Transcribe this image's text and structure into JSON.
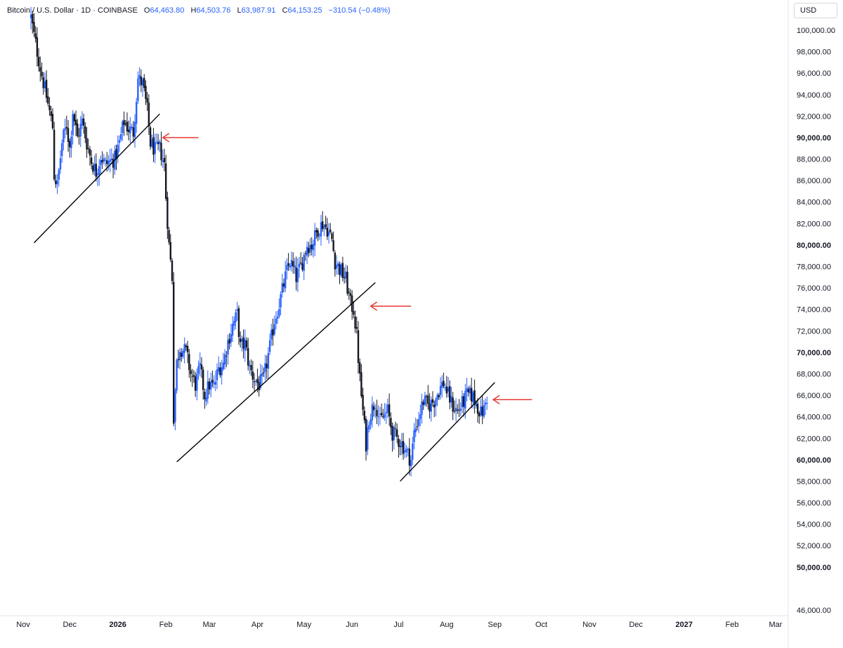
{
  "header": {
    "symbol": "Bitcoin / U.S. Dollar",
    "interval": "1D",
    "exchange": "COINBASE",
    "open_label": "O",
    "open": "64,463.80",
    "high_label": "H",
    "high": "64,503.76",
    "low_label": "L",
    "low": "63,987.91",
    "close_label": "C",
    "close": "64,153.25",
    "change": "−310.54 (−0.48%)",
    "currency": "USD"
  },
  "colors": {
    "up": "#2962ff",
    "down": "#131722",
    "annotation": "#e53935",
    "trendline": "#000000"
  },
  "chart_data": {
    "type": "candlestick",
    "ylim": [
      45000,
      101500
    ],
    "x_range": [
      "2025-11-01",
      "2027-03-31"
    ],
    "y_ticks": [
      {
        "label": "100,000.00",
        "value": 100000,
        "bold": false
      },
      {
        "label": "98,000.00",
        "value": 98000,
        "bold": false
      },
      {
        "label": "96,000.00",
        "value": 96000,
        "bold": false
      },
      {
        "label": "94,000.00",
        "value": 94000,
        "bold": false
      },
      {
        "label": "92,000.00",
        "value": 92000,
        "bold": false
      },
      {
        "label": "90,000.00",
        "value": 90000,
        "bold": true
      },
      {
        "label": "88,000.00",
        "value": 88000,
        "bold": false
      },
      {
        "label": "86,000.00",
        "value": 86000,
        "bold": false
      },
      {
        "label": "84,000.00",
        "value": 84000,
        "bold": false
      },
      {
        "label": "82,000.00",
        "value": 82000,
        "bold": false
      },
      {
        "label": "80,000.00",
        "value": 80000,
        "bold": true
      },
      {
        "label": "78,000.00",
        "value": 78000,
        "bold": false
      },
      {
        "label": "76,000.00",
        "value": 76000,
        "bold": false
      },
      {
        "label": "74,000.00",
        "value": 74000,
        "bold": false
      },
      {
        "label": "72,000.00",
        "value": 72000,
        "bold": false
      },
      {
        "label": "70,000.00",
        "value": 70000,
        "bold": true
      },
      {
        "label": "68,000.00",
        "value": 68000,
        "bold": false
      },
      {
        "label": "66,000.00",
        "value": 66000,
        "bold": false
      },
      {
        "label": "64,000.00",
        "value": 64000,
        "bold": false
      },
      {
        "label": "62,000.00",
        "value": 62000,
        "bold": false
      },
      {
        "label": "60,000.00",
        "value": 60000,
        "bold": true
      },
      {
        "label": "58,000.00",
        "value": 58000,
        "bold": false
      },
      {
        "label": "56,000.00",
        "value": 56000,
        "bold": false
      },
      {
        "label": "54,000.00",
        "value": 54000,
        "bold": false
      },
      {
        "label": "52,000.00",
        "value": 52000,
        "bold": false
      },
      {
        "label": "50,000.00",
        "value": 50000,
        "bold": true
      },
      {
        "label": "46,000.00",
        "value": 46000,
        "bold": false
      }
    ],
    "x_ticks": [
      {
        "label": "Nov",
        "date": "2025-11-01",
        "bold": false
      },
      {
        "label": "Dec",
        "date": "2025-12-01",
        "bold": false
      },
      {
        "label": "2026",
        "date": "2026-01-01",
        "bold": true
      },
      {
        "label": "Feb",
        "date": "2026-02-01",
        "bold": false
      },
      {
        "label": "Mar",
        "date": "2026-03-01",
        "bold": false
      },
      {
        "label": "Apr",
        "date": "2026-04-01",
        "bold": false
      },
      {
        "label": "May",
        "date": "2026-05-01",
        "bold": false
      },
      {
        "label": "Jun",
        "date": "2026-06-01",
        "bold": false
      },
      {
        "label": "Jul",
        "date": "2026-07-01",
        "bold": false
      },
      {
        "label": "Aug",
        "date": "2026-08-01",
        "bold": false
      },
      {
        "label": "Sep",
        "date": "2026-09-01",
        "bold": false
      },
      {
        "label": "Oct",
        "date": "2026-10-01",
        "bold": false
      },
      {
        "label": "Nov",
        "date": "2026-11-01",
        "bold": false
      },
      {
        "label": "Dec",
        "date": "2026-12-01",
        "bold": false
      },
      {
        "label": "2027",
        "date": "2027-01-01",
        "bold": true
      },
      {
        "label": "Feb",
        "date": "2027-02-01",
        "bold": false
      },
      {
        "label": "Mar",
        "date": "2027-03-01",
        "bold": false
      }
    ],
    "close_path": [
      [
        "2025-11-06",
        101200
      ],
      [
        "2025-11-08",
        99500
      ],
      [
        "2025-11-12",
        96500
      ],
      [
        "2025-11-16",
        93800
      ],
      [
        "2025-11-20",
        91000
      ],
      [
        "2025-11-21",
        86500
      ],
      [
        "2025-11-23",
        85500
      ],
      [
        "2025-11-26",
        89500
      ],
      [
        "2025-11-29",
        91200
      ],
      [
        "2025-12-01",
        89000
      ],
      [
        "2025-12-03",
        92500
      ],
      [
        "2025-12-06",
        90000
      ],
      [
        "2025-12-09",
        91500
      ],
      [
        "2025-12-12",
        89500
      ],
      [
        "2025-12-15",
        87800
      ],
      [
        "2025-12-18",
        86800
      ],
      [
        "2025-12-21",
        88300
      ],
      [
        "2025-12-24",
        87500
      ],
      [
        "2025-12-27",
        87800
      ],
      [
        "2025-12-30",
        88000
      ],
      [
        "2026-01-02",
        89500
      ],
      [
        "2026-01-05",
        91500
      ],
      [
        "2026-01-08",
        90800
      ],
      [
        "2026-01-11",
        90500
      ],
      [
        "2026-01-14",
        95500
      ],
      [
        "2026-01-17",
        95000
      ],
      [
        "2026-01-20",
        92500
      ],
      [
        "2026-01-22",
        89500
      ],
      [
        "2026-01-25",
        88800
      ],
      [
        "2026-01-28",
        89000
      ],
      [
        "2026-01-31",
        87500
      ],
      [
        "2026-02-01",
        84500
      ],
      [
        "2026-02-03",
        80000
      ],
      [
        "2026-02-05",
        77000
      ],
      [
        "2026-02-06",
        64000
      ],
      [
        "2026-02-08",
        69000
      ],
      [
        "2026-02-10",
        70500
      ],
      [
        "2026-02-14",
        70000
      ],
      [
        "2026-02-17",
        68000
      ],
      [
        "2026-02-20",
        67000
      ],
      [
        "2026-02-23",
        68500
      ],
      [
        "2026-02-26",
        66000
      ],
      [
        "2026-03-01",
        67000
      ],
      [
        "2026-03-04",
        66800
      ],
      [
        "2026-03-07",
        68500
      ],
      [
        "2026-03-10",
        69000
      ],
      [
        "2026-03-13",
        71000
      ],
      [
        "2026-03-16",
        72500
      ],
      [
        "2026-03-19",
        73500
      ],
      [
        "2026-03-21",
        70500
      ],
      [
        "2026-03-24",
        70800
      ],
      [
        "2026-03-27",
        68500
      ],
      [
        "2026-03-30",
        67500
      ],
      [
        "2026-04-02",
        67000
      ],
      [
        "2026-04-05",
        67500
      ],
      [
        "2026-04-09",
        70500
      ],
      [
        "2026-04-12",
        73000
      ],
      [
        "2026-04-15",
        74500
      ],
      [
        "2026-04-19",
        77000
      ],
      [
        "2026-04-22",
        78500
      ],
      [
        "2026-04-26",
        77000
      ],
      [
        "2026-04-29",
        78000
      ],
      [
        "2026-05-03",
        80000
      ],
      [
        "2026-05-06",
        80000
      ],
      [
        "2026-05-10",
        81500
      ],
      [
        "2026-05-13",
        82000
      ],
      [
        "2026-05-16",
        81500
      ],
      [
        "2026-05-19",
        80500
      ],
      [
        "2026-05-21",
        78500
      ],
      [
        "2026-05-25",
        77500
      ],
      [
        "2026-05-28",
        76800
      ],
      [
        "2026-05-31",
        74500
      ],
      [
        "2026-06-02",
        74000
      ],
      [
        "2026-06-04",
        71500
      ],
      [
        "2026-06-06",
        67500
      ],
      [
        "2026-06-08",
        64500
      ],
      [
        "2026-06-10",
        61500
      ],
      [
        "2026-06-12",
        64000
      ],
      [
        "2026-06-16",
        65500
      ],
      [
        "2026-06-19",
        63500
      ],
      [
        "2026-06-21",
        64000
      ],
      [
        "2026-06-24",
        64500
      ],
      [
        "2026-06-27",
        62500
      ],
      [
        "2026-06-30",
        62000
      ],
      [
        "2026-07-03",
        61500
      ],
      [
        "2026-07-07",
        60500
      ],
      [
        "2026-07-09",
        60000
      ],
      [
        "2026-07-11",
        62500
      ],
      [
        "2026-07-14",
        64000
      ],
      [
        "2026-07-17",
        65500
      ],
      [
        "2026-07-20",
        65000
      ],
      [
        "2026-07-24",
        65500
      ],
      [
        "2026-07-27",
        66500
      ],
      [
        "2026-07-30",
        67200
      ],
      [
        "2026-08-02",
        66000
      ],
      [
        "2026-08-05",
        65000
      ],
      [
        "2026-08-08",
        64500
      ],
      [
        "2026-08-11",
        65200
      ],
      [
        "2026-08-14",
        66000
      ],
      [
        "2026-08-17",
        66000
      ],
      [
        "2026-08-20",
        65300
      ],
      [
        "2026-08-23",
        64300
      ],
      [
        "2026-08-25",
        64700
      ],
      [
        "2026-08-27",
        65800
      ]
    ],
    "trendlines": [
      {
        "from": [
          "2025-11-08",
          80200
        ],
        "to": [
          "2026-01-28",
          92200
        ]
      },
      {
        "from": [
          "2026-02-08",
          59800
        ],
        "to": [
          "2026-06-16",
          76500
        ]
      },
      {
        "from": [
          "2026-07-02",
          58000
        ],
        "to": [
          "2026-09-01",
          67200
        ]
      }
    ],
    "arrows": [
      {
        "head": [
          "2026-01-30",
          90000
        ],
        "tail": [
          "2026-02-22",
          90000
        ]
      },
      {
        "head": [
          "2026-06-13",
          74300
        ],
        "tail": [
          "2026-07-09",
          74300
        ]
      },
      {
        "head": [
          "2026-08-31",
          65600
        ],
        "tail": [
          "2026-09-25",
          65600
        ]
      }
    ]
  }
}
